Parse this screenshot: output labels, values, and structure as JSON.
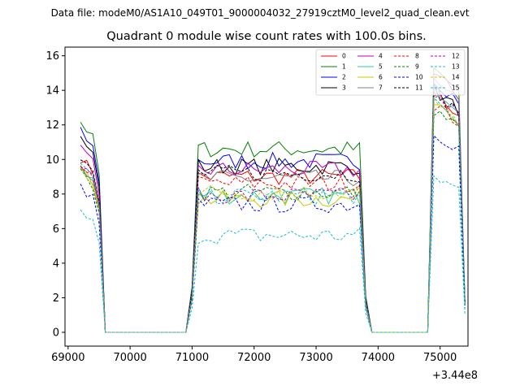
{
  "figure": {
    "suptitle": "Data file: modeM0/AS1A10_049T01_9000004032_27919cztM0_level2_quad_clean.evt"
  },
  "chart_data": {
    "type": "line",
    "title": "Quadrant 0 module wise count rates with 100.0s bins.",
    "xlabel": "",
    "ylabel": "",
    "x_offset_label": "+3.44e8",
    "xlim": [
      68950,
      75450
    ],
    "ylim": [
      -0.8,
      16.5
    ],
    "xticks": [
      69000,
      70000,
      71000,
      72000,
      73000,
      74000,
      75000
    ],
    "yticks": [
      0,
      2,
      4,
      6,
      8,
      10,
      12,
      14,
      16
    ],
    "grid": false,
    "legend": {
      "placement": "top-right",
      "columns": 4
    },
    "series": [
      {
        "name": "0",
        "color": "#ff0000",
        "dash": "solid",
        "levels": [
          10.1,
          9.0,
          13.8
        ]
      },
      {
        "name": "1",
        "color": "#008000",
        "dash": "solid",
        "levels": [
          12.2,
          10.6,
          15.2
        ]
      },
      {
        "name": "2",
        "color": "#0000ff",
        "dash": "solid",
        "levels": [
          11.6,
          9.9,
          14.6
        ]
      },
      {
        "name": "3",
        "color": "#000000",
        "dash": "solid",
        "levels": [
          11.2,
          9.6,
          14.0
        ]
      },
      {
        "name": "4",
        "color": "#bf00bf",
        "dash": "solid",
        "levels": [
          10.6,
          9.4,
          14.9
        ]
      },
      {
        "name": "5",
        "color": "#2ecc9a",
        "dash": "solid",
        "levels": [
          9.6,
          7.9,
          14.2
        ]
      },
      {
        "name": "6",
        "color": "#c8c800",
        "dash": "solid",
        "levels": [
          9.4,
          7.7,
          13.5
        ]
      },
      {
        "name": "7",
        "color": "#808080",
        "dash": "solid",
        "levels": [
          9.7,
          8.9,
          14.4
        ]
      },
      {
        "name": "8",
        "color": "#ff0000",
        "dash": "dashed",
        "levels": [
          9.8,
          8.6,
          13.2
        ]
      },
      {
        "name": "9",
        "color": "#008000",
        "dash": "dashed",
        "levels": [
          9.2,
          8.1,
          12.9
        ]
      },
      {
        "name": "10",
        "color": "#0000ff",
        "dash": "dashed",
        "levels": [
          8.4,
          7.4,
          11.6
        ]
      },
      {
        "name": "11",
        "color": "#000000",
        "dash": "dashed",
        "levels": [
          10.0,
          9.2,
          13.9
        ]
      },
      {
        "name": "12",
        "color": "#bf00bf",
        "dash": "dashed",
        "levels": [
          9.6,
          7.9,
          13.7
        ]
      },
      {
        "name": "13",
        "color": "#17becf",
        "dash": "dashed",
        "levels": [
          6.9,
          5.6,
          9.0
        ]
      },
      {
        "name": "14",
        "color": "#c8c800",
        "dash": "dashed",
        "levels": [
          9.5,
          8.1,
          13.3
        ]
      },
      {
        "name": "15",
        "color": "#17becf",
        "dash": "dashed",
        "levels": [
          9.7,
          7.9,
          13.2
        ]
      }
    ],
    "segments": [
      {
        "start": 69200,
        "end": 69500
      },
      {
        "start": 71100,
        "end": 73750
      },
      {
        "start": 74900,
        "end": 75400
      }
    ],
    "bin_seconds": 100
  }
}
